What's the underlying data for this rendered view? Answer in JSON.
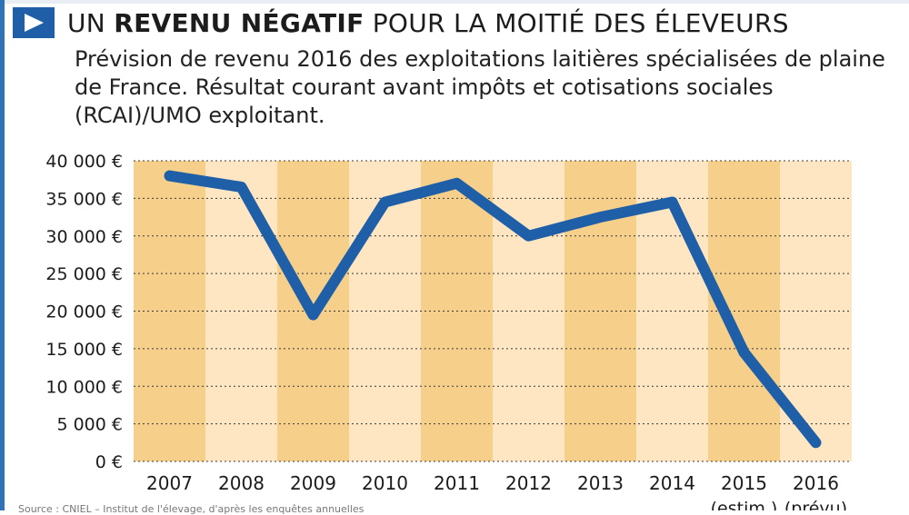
{
  "header": {
    "title_normal_1": "UN ",
    "title_bold": "REVENU NÉGATIF",
    "title_normal_2": " POUR LA MOITIÉ DES ÉLEVEURS",
    "subtitle": "Prévision de revenu 2016 des exploitations laitières spécialisées de plaine de France. Résultat courant avant impôts et cotisations sociales (RCAI)/UMO exploitant."
  },
  "icons": {
    "title_icon": "play-triangle-icon"
  },
  "colors": {
    "accent": "#1f5fa8",
    "line": "#1f5fa8",
    "band_dark": "#f6cf8a",
    "band_light": "#fde6c1",
    "frame": "#2e72b8"
  },
  "chart_data": {
    "type": "line",
    "title": "UN REVENU NÉGATIF POUR LA MOITIÉ DES ÉLEVEURS",
    "xlabel": "",
    "ylabel": "",
    "categories": [
      "2007",
      "2008",
      "2009",
      "2010",
      "2011",
      "2012",
      "2013",
      "2014",
      "2015",
      "2016"
    ],
    "category_sublabels": [
      "",
      "",
      "",
      "",
      "",
      "",
      "",
      "",
      "(estim.)",
      "(prévu)"
    ],
    "series": [
      {
        "name": "RCAI/UMO exploitant",
        "values": [
          38000,
          36500,
          19500,
          34500,
          37000,
          30000,
          32500,
          34500,
          14500,
          2500
        ]
      }
    ],
    "ylim": [
      0,
      40000
    ],
    "yticks": [
      0,
      5000,
      10000,
      15000,
      20000,
      25000,
      30000,
      35000,
      40000
    ],
    "ytick_labels": [
      "0 €",
      "5 000 €",
      "10 000 €",
      "15 000 €",
      "20 000 €",
      "25 000 €",
      "30 000 €",
      "35 000 €",
      "40 000 €"
    ],
    "grid": true
  },
  "footer": {
    "source": "Source : CNIEL – Institut de l'élevage, d'après les enquêtes annuelles"
  }
}
